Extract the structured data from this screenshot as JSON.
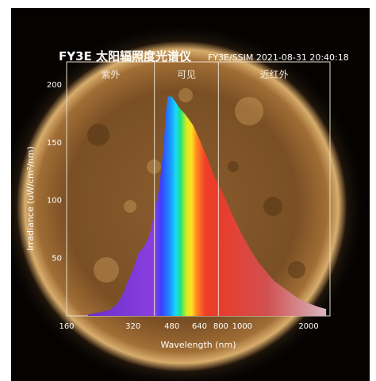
{
  "header": {
    "title": "FY3E 太阳辐照度光谱仪",
    "subtitle": "FY3E/SSIM 2021-08-31 20:40:18"
  },
  "chart_data": {
    "type": "area",
    "title": "FY3E 太阳辐照度光谱仪",
    "subtitle": "FY3E/SSIM 2021-08-31 20:40:18",
    "xlabel": "Wavelength (nm)",
    "ylabel": "Irradiance (uW/cm²/nm)",
    "xscale": "log",
    "xlim": [
      160,
      2500
    ],
    "ylim": [
      0,
      220
    ],
    "x_ticks": [
      160,
      320,
      480,
      640,
      800,
      1000,
      2000
    ],
    "y_ticks": [
      50,
      100,
      150,
      200
    ],
    "regions": [
      {
        "name": "紫外",
        "range": [
          160,
          400
        ]
      },
      {
        "name": "可见",
        "range": [
          400,
          780
        ]
      },
      {
        "name": "近红外",
        "range": [
          780,
          2500
        ]
      }
    ],
    "series": [
      {
        "x": [
          200,
          250,
          270,
          290,
          300,
          320,
          340,
          360,
          380,
          400,
          420,
          440,
          450,
          460,
          480,
          500,
          520,
          550,
          600,
          650,
          700,
          750,
          800,
          900,
          1000,
          1100,
          1200,
          1400,
          1600,
          1800,
          2000,
          2200,
          2400
        ],
        "values": [
          1,
          5,
          10,
          20,
          28,
          40,
          55,
          60,
          70,
          90,
          110,
          145,
          175,
          190,
          190,
          185,
          180,
          175,
          165,
          150,
          135,
          120,
          110,
          88,
          70,
          56,
          45,
          30,
          22,
          15,
          11,
          8,
          6
        ]
      }
    ],
    "grid": false,
    "legend": "none"
  }
}
